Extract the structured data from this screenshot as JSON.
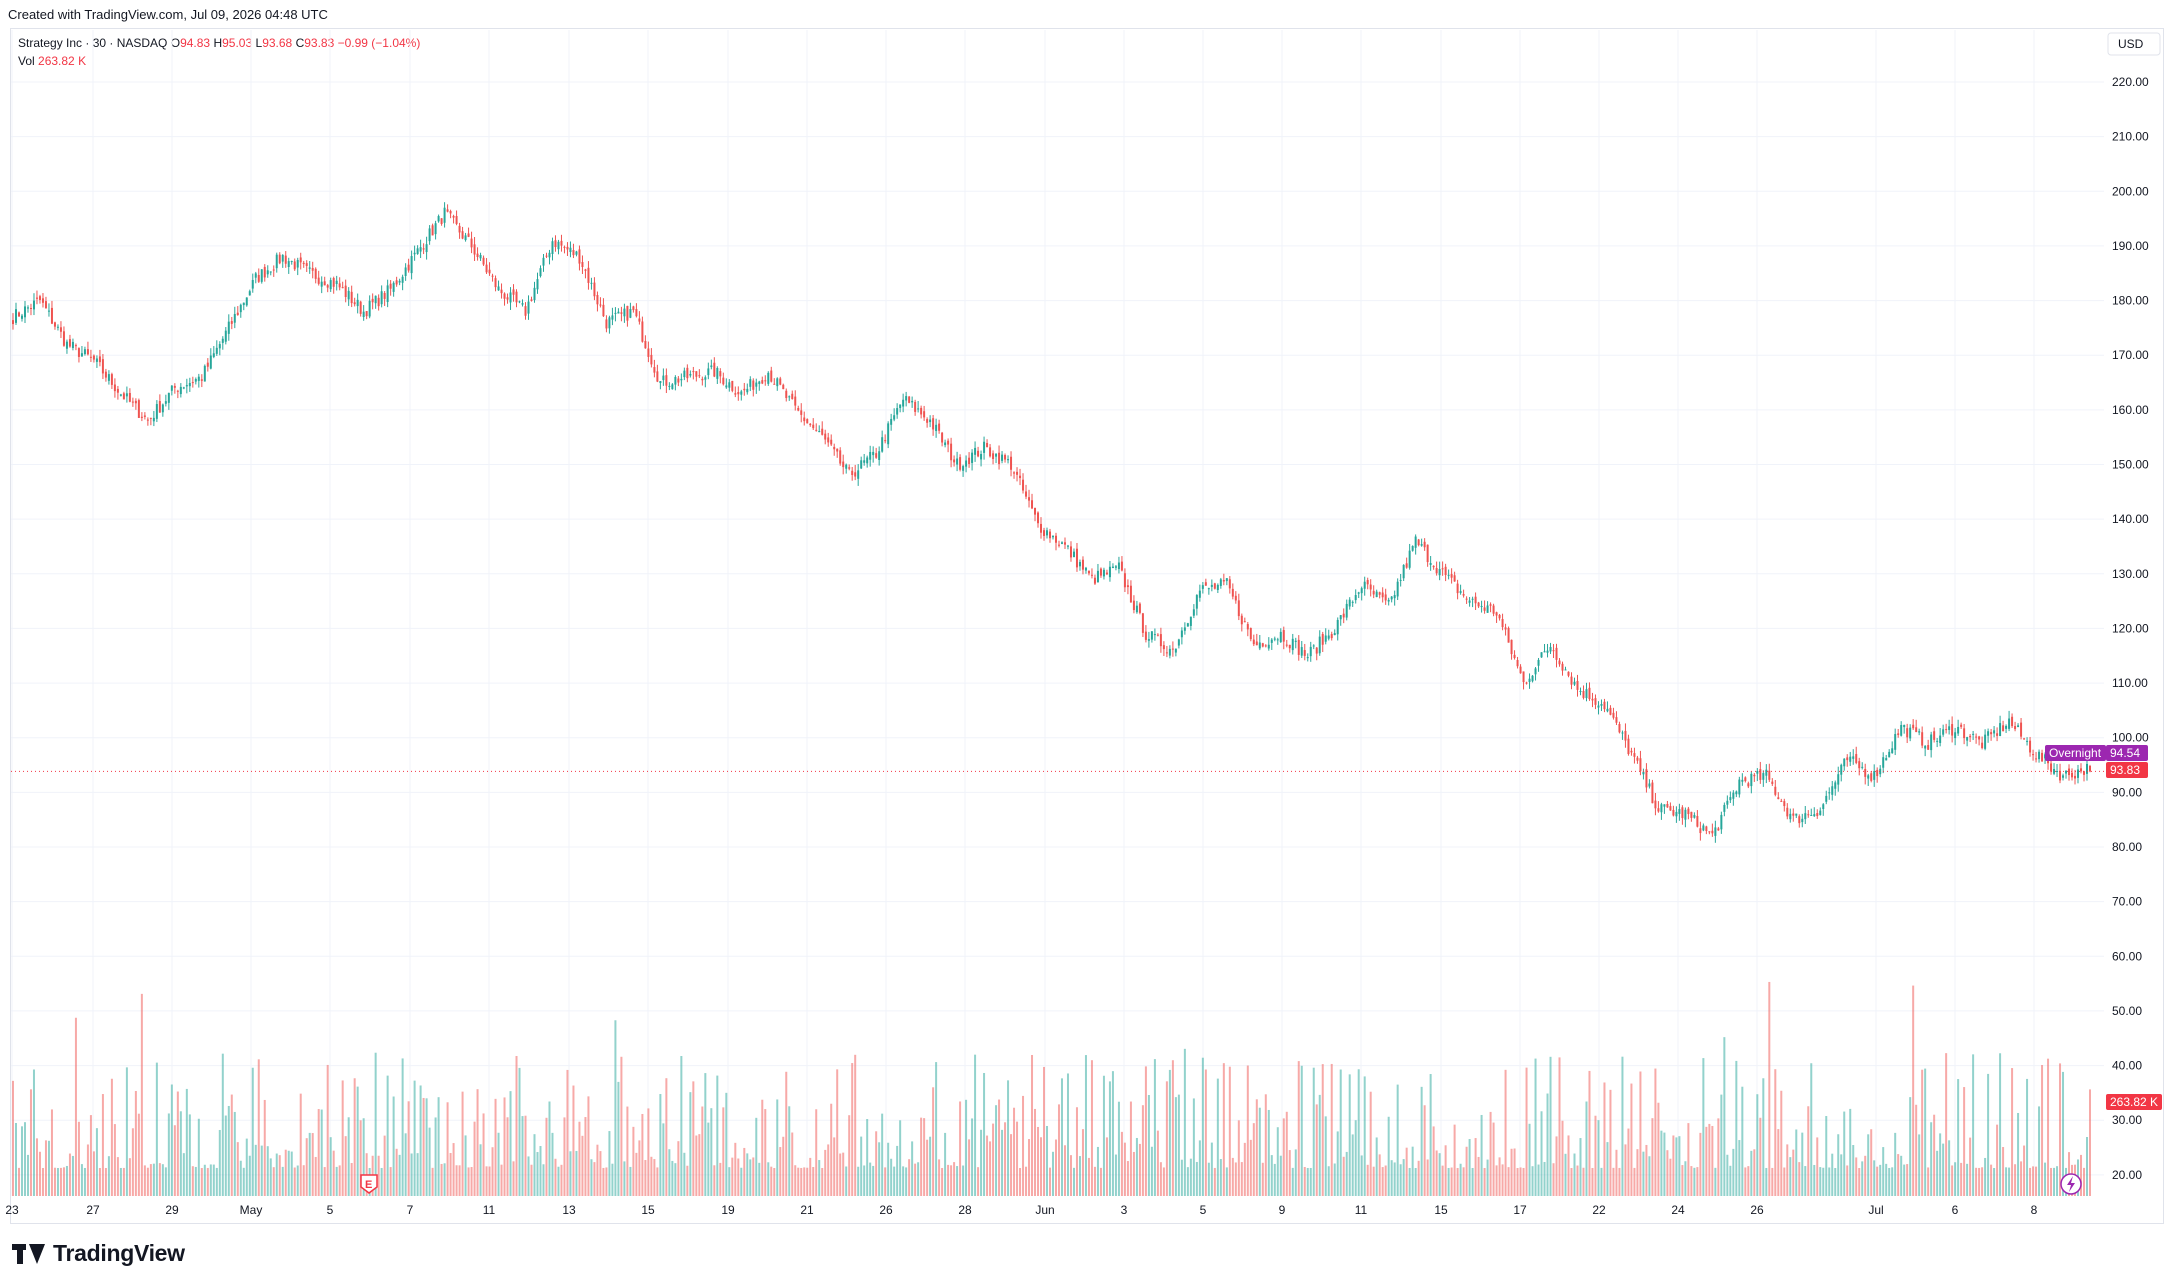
{
  "header": {
    "created": "Created with TradingView.com, Jul 09, 2026 04:48 UTC"
  },
  "legend": {
    "symbol": "Strategy Inc · 30 · NASDAQ",
    "open_label": "O",
    "open": "94.83",
    "high_label": "H",
    "high": "95.03",
    "low_label": "L",
    "low": "93.68",
    "close_label": "C",
    "close": "93.83",
    "change": "−0.99 (−1.04%)",
    "vol_label": "Vol",
    "vol": "263.82 K"
  },
  "axis": {
    "currency": "USD",
    "price_ticks": [
      "220.00",
      "210.00",
      "200.00",
      "190.00",
      "180.00",
      "170.00",
      "160.00",
      "150.00",
      "140.00",
      "130.00",
      "120.00",
      "110.00",
      "100.00",
      "90.00",
      "80.00",
      "70.00",
      "60.00",
      "50.00",
      "40.00",
      "30.00",
      "20.00"
    ],
    "date_ticks": [
      "23",
      "27",
      "29",
      "May",
      "5",
      "7",
      "11",
      "13",
      "15",
      "19",
      "21",
      "26",
      "28",
      "Jun",
      "3",
      "5",
      "9",
      "11",
      "15",
      "17",
      "22",
      "24",
      "26",
      "Jul",
      "6",
      "8"
    ]
  },
  "badges": {
    "overnight_label": "Overnight",
    "overnight_price": "94.54",
    "last_price": "93.83",
    "volume": "263.82 K"
  },
  "markers": {
    "earnings": "E"
  },
  "brand": {
    "name": "TradingView"
  },
  "colors": {
    "up": "#26a69a",
    "down": "#ef5350",
    "last_price": "#f23645",
    "overnight": "#9c27b0",
    "grid": "#f0f3fa"
  },
  "chart_data": {
    "type": "candlestick",
    "symbol": "Strategy Inc",
    "interval": "30",
    "exchange": "NASDAQ",
    "y_range": [
      75,
      222
    ],
    "x_range_labels": [
      "23",
      "8"
    ],
    "anchors": [
      {
        "date": "Apr 23",
        "price": 177
      },
      {
        "date": "Apr 24",
        "price": 180
      },
      {
        "date": "Apr 27",
        "price": 172
      },
      {
        "date": "Apr 28",
        "price": 169
      },
      {
        "date": "Apr 29",
        "price": 163
      },
      {
        "date": "Apr 30",
        "price": 158
      },
      {
        "date": "Apr 30",
        "price": 164
      },
      {
        "date": "May 1",
        "price": 166
      },
      {
        "date": "May 1",
        "price": 175
      },
      {
        "date": "May 4",
        "price": 184
      },
      {
        "date": "May 5",
        "price": 188
      },
      {
        "date": "May 6",
        "price": 185
      },
      {
        "date": "May 7",
        "price": 183
      },
      {
        "date": "May 8",
        "price": 178
      },
      {
        "date": "May 8",
        "price": 182
      },
      {
        "date": "May 11",
        "price": 189
      },
      {
        "date": "May 12",
        "price": 196
      },
      {
        "date": "May 12",
        "price": 190
      },
      {
        "date": "May 13",
        "price": 182
      },
      {
        "date": "May 14",
        "price": 178
      },
      {
        "date": "May 14",
        "price": 191
      },
      {
        "date": "May 15",
        "price": 188
      },
      {
        "date": "May 15",
        "price": 176
      },
      {
        "date": "May 18",
        "price": 178
      },
      {
        "date": "May 19",
        "price": 165
      },
      {
        "date": "May 20",
        "price": 166
      },
      {
        "date": "May 21",
        "price": 167
      },
      {
        "date": "May 22",
        "price": 163
      },
      {
        "date": "May 26",
        "price": 167
      },
      {
        "date": "May 26",
        "price": 160
      },
      {
        "date": "May 27",
        "price": 155
      },
      {
        "date": "May 28",
        "price": 148
      },
      {
        "date": "May 28",
        "price": 152
      },
      {
        "date": "May 29",
        "price": 162
      },
      {
        "date": "May 29",
        "price": 158
      },
      {
        "date": "Jun 1",
        "price": 150
      },
      {
        "date": "Jun 1",
        "price": 153
      },
      {
        "date": "Jun 2",
        "price": 150
      },
      {
        "date": "Jun 2",
        "price": 139
      },
      {
        "date": "Jun 3",
        "price": 135
      },
      {
        "date": "Jun 4",
        "price": 129
      },
      {
        "date": "Jun 5",
        "price": 131
      },
      {
        "date": "Jun 5",
        "price": 119
      },
      {
        "date": "Jun 8",
        "price": 116
      },
      {
        "date": "Jun 8",
        "price": 127
      },
      {
        "date": "Jun 9",
        "price": 128
      },
      {
        "date": "Jun 9",
        "price": 117
      },
      {
        "date": "Jun 10",
        "price": 119
      },
      {
        "date": "Jun 11",
        "price": 115
      },
      {
        "date": "Jun 12",
        "price": 120
      },
      {
        "date": "Jun 12",
        "price": 128
      },
      {
        "date": "Jun 13",
        "price": 124
      },
      {
        "date": "Jun 15",
        "price": 136
      },
      {
        "date": "Jun 16",
        "price": 130
      },
      {
        "date": "Jun 17",
        "price": 125
      },
      {
        "date": "Jun 18",
        "price": 123
      },
      {
        "date": "Jun 19",
        "price": 110
      },
      {
        "date": "Jun 22",
        "price": 117
      },
      {
        "date": "Jun 22",
        "price": 109
      },
      {
        "date": "Jun 23",
        "price": 106
      },
      {
        "date": "Jun 24",
        "price": 97
      },
      {
        "date": "Jun 25",
        "price": 87
      },
      {
        "date": "Jun 26",
        "price": 86
      },
      {
        "date": "Jun 27",
        "price": 82
      },
      {
        "date": "Jun 28",
        "price": 92
      },
      {
        "date": "Jun 29",
        "price": 93
      },
      {
        "date": "Jun 29",
        "price": 85
      },
      {
        "date": "Jun 30",
        "price": 87
      },
      {
        "date": "Jul 1",
        "price": 96
      },
      {
        "date": "Jul 2",
        "price": 93
      },
      {
        "date": "Jul 3",
        "price": 102
      },
      {
        "date": "Jul 6",
        "price": 99
      },
      {
        "date": "Jul 6",
        "price": 102
      },
      {
        "date": "Jul 7",
        "price": 99
      },
      {
        "date": "Jul 7",
        "price": 103
      },
      {
        "date": "Jul 8",
        "price": 97
      },
      {
        "date": "Jul 8",
        "price": 93
      },
      {
        "date": "Jul 8",
        "price": 94.5
      }
    ],
    "last": {
      "open": 94.83,
      "high": 95.03,
      "low": 93.68,
      "close": 93.83
    },
    "volume_range_labels": [
      "20.00",
      "70.00"
    ],
    "volume_last": "263.82 K",
    "grid": true,
    "legend_position": "top-left"
  }
}
